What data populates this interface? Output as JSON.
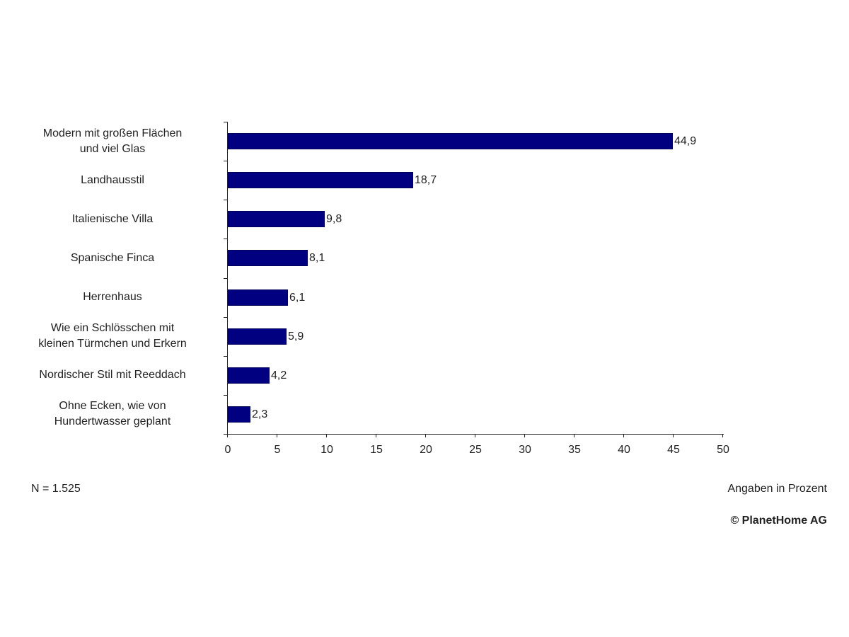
{
  "chart_data": {
    "type": "bar",
    "orientation": "horizontal",
    "title": "",
    "xlabel": "Angaben in Prozent",
    "ylabel": "",
    "xlim": [
      0,
      50
    ],
    "x_ticks": [
      "0",
      "5",
      "10",
      "15",
      "20",
      "25",
      "30",
      "35",
      "40",
      "45",
      "50"
    ],
    "grid": false,
    "legend": null,
    "bar_color": "#000080",
    "categories": [
      [
        "Modern mit großen Flächen",
        "und viel Glas"
      ],
      [
        "Landhausstil"
      ],
      [
        "Italienische Villa"
      ],
      [
        "Spanische Finca"
      ],
      [
        "Herrenhaus"
      ],
      [
        "Wie ein Schlösschen mit",
        "kleinen Türmchen und Erkern"
      ],
      [
        "Nordischer Stil mit Reeddach"
      ],
      [
        "Ohne Ecken, wie von",
        "Hundertwasser geplant"
      ]
    ],
    "values": [
      44.9,
      18.7,
      9.8,
      8.1,
      6.1,
      5.9,
      4.2,
      2.3
    ],
    "value_labels": [
      "44,9",
      "18,7",
      "9,8",
      "8,1",
      "6,1",
      "5,9",
      "4,2",
      "2,3"
    ]
  },
  "footer": {
    "sample_size": "N = 1.525",
    "unit_note": "Angaben in Prozent",
    "copyright": "© PlanetHome AG"
  }
}
